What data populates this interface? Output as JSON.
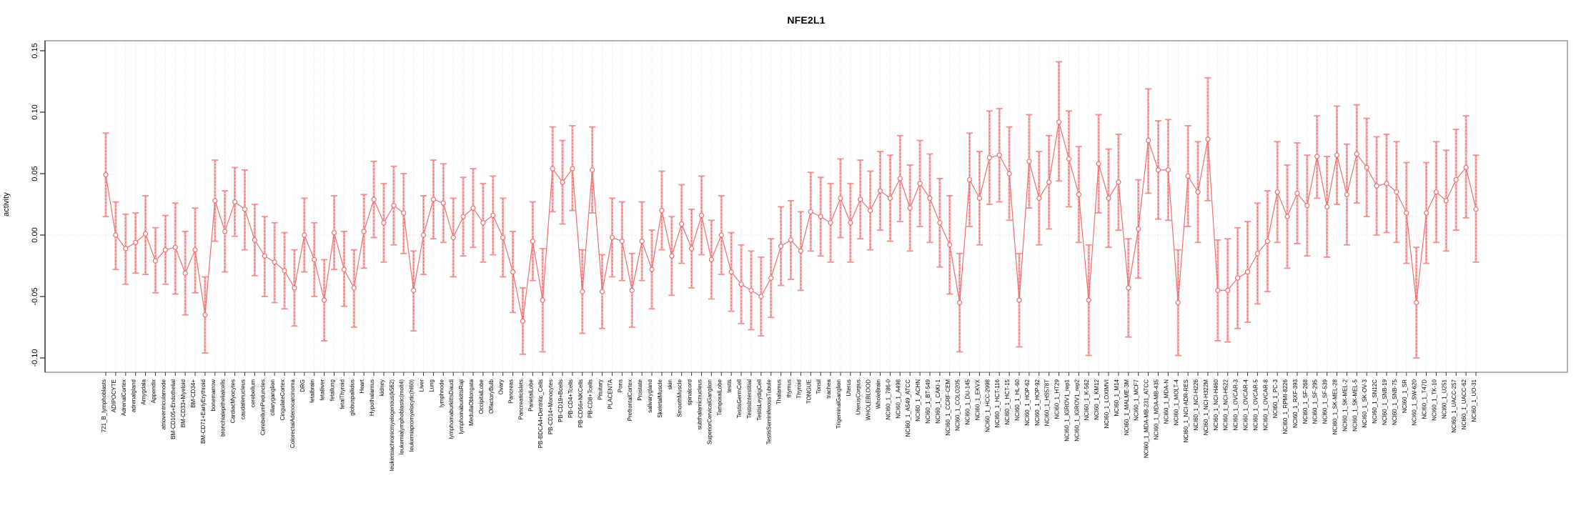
{
  "page": {
    "title": "NFE2L1"
  },
  "chart_data": {
    "type": "line",
    "title": "NFE2L1",
    "xlabel": "",
    "ylabel": "activity",
    "ylim": [
      -0.112,
      0.158
    ],
    "yticks": [
      "-0.10",
      "-0.05",
      "0.00",
      "0.05",
      "0.10",
      "0.15"
    ],
    "ytick_values": [
      -0.1,
      -0.05,
      0.0,
      0.05,
      0.1,
      0.15
    ],
    "grid": "vertical dotted gridline per category; dotted horizontal line at 0",
    "legend_position": "none",
    "point_style": "open circle with error bars",
    "colors": {
      "series": "#ee6f6f",
      "error_band": "#f6b6b6",
      "error_cap": "#f09090",
      "error_dash": "#e86060",
      "gridline": "#dcdcdc",
      "zero_line": "#dedede",
      "plot_border": "#909090",
      "axis": "#444444",
      "text": "#000000"
    },
    "categories": [
      "721_B_lymphoblasts",
      "ADIPOCYTE",
      "AdrenalCortex",
      "adrenalgland",
      "Amygdala",
      "Appendix",
      "atrioventricularnode",
      "BM-CD105+Endothelial",
      "BM-CD33+Myeloid",
      "BM-CD34+",
      "BM-CD71+EarlyErythroid",
      "bonemarrow",
      "bronchialepithelialcells",
      "CardiacMyocytes",
      "caudatenucleus",
      "cerebellum",
      "CerebellumPeduncles",
      "ciliaryganglion",
      "CingulateCortex",
      "ColorectalAdenocarcinoma",
      "DRG",
      "fetalbrain",
      "fetalliver",
      "fetallung",
      "fetalThyroid",
      "globuspallidus",
      "Heart",
      "Hypothalamus",
      "kidney",
      "leukemiachronicmyelogenous(k562)",
      "leukemialymphoblastic(molt4)",
      "leukemiapromyelocytic(hl60)",
      "Liver",
      "Lung",
      "lymphnode",
      "lymphomaburkittsDaudi",
      "lymphomaburkittsRaji",
      "MedullaOblongata",
      "OccipitalLobe",
      "OlfactoryBulb",
      "Ovary",
      "Pancreas",
      "PancreaticIslets",
      "ParietalLobe",
      "PB-BDCA4+Dentritic_Cells",
      "PB-CD14+Monocytes",
      "PB-CD19+Bcells",
      "PB-CD4+Tcells",
      "PB-CD56+NKCells",
      "PB-CD8+Tcells",
      "Pituitary",
      "PLACENTA",
      "Pons",
      "PrefrontalCortex",
      "Prostate",
      "salivarygland",
      "SkeletalMuscle",
      "skin",
      "SmoothMuscle",
      "spinalcord",
      "subthalamicnucleus",
      "SuperiorCervicalGanglion",
      "TemporalLobe",
      "testis",
      "TestisGermCell",
      "TestisInterstitial",
      "TestisLeydigCell",
      "TestisSeminiferousTubule",
      "Thalamus",
      "thymus",
      "Thyroid",
      "TONGUE",
      "Tonsil",
      "trachea",
      "TrigeminalGanglion",
      "Uterus",
      "UterusCorpus",
      "WHOLEBLOOD",
      "WholeBrain",
      "NCI60_1_786-0",
      "NCI60_1_A498",
      "NCI60_1_A549_ATCC",
      "NCI60_1_ACHN",
      "NCI60_1_BT-549",
      "NCI60_1_CAKI-1",
      "NCI60_1_CCRF-CEM",
      "NCI60_1_COLO205",
      "NCI60_1_DU-145",
      "NCI60_1_EKVX",
      "NCI60_1_HCC-2998",
      "NCI60_1_HCT-116",
      "NCI60_1_HCT-15",
      "NCI60_1_HL-60",
      "NCI60_1_HOP-62",
      "NCI60_1_HOP-92",
      "NCI60_1_HS578T",
      "NCI60_1_HT29",
      "NCI60_1_IGROV1_rep1",
      "NCI60_1_IGROV1_rep2",
      "NCI60_1_K-562",
      "NCI60_1_KM12",
      "NCI60_1_LOXIMVI",
      "NCI60_1_M14",
      "NCI60_1_MALME-3M",
      "NCI60_1_MCF7",
      "NCI60_1_MDA-MB-231_ATCC",
      "NCI60_1_MDA-MB-435",
      "NCI60_1_MDA-N",
      "NCI60_1_MOLT-4",
      "NCI60_1_NCI-ADR-RES",
      "NCI60_1_NCI-H226",
      "NCI60_1_NCI-H322M",
      "NCI60_1_NCI-H460",
      "NCI60_1_NCI-H522",
      "NCI60_1_OVCAR-3",
      "NCI60_1_OVCAR-4",
      "NCI60_1_OVCAR-5",
      "NCI60_1_OVCAR-8",
      "NCI60_1_PC-3",
      "NCI60_1_RPMI-8226",
      "NCI60_1_RXF-393",
      "NCI60_1_SF-268",
      "NCI60_1_SF-295",
      "NCI60_1_SF-539",
      "NCI60_1_SK-MEL-28",
      "NCI60_1_SK-MEL-2",
      "NCI60_1_SK-MEL-5",
      "NCI60_1_SK-OV-3",
      "NCI60_1_SN12C",
      "NCI60_1_SNB-19",
      "NCI60_1_SNB-75",
      "NCI60_1_SR",
      "NCI60_1_SW-620",
      "NCI60_1_T47D",
      "NCI60_1_TK-10",
      "NCI60_1_U251",
      "NCI60_1_UACC-257",
      "NCI60_1_UACC-62",
      "NCI60_1_UO-31"
    ],
    "values": [
      0.049,
      0.0,
      -0.011,
      -0.006,
      0.001,
      -0.021,
      -0.012,
      -0.01,
      -0.031,
      -0.012,
      -0.065,
      0.028,
      0.003,
      0.027,
      0.021,
      -0.004,
      -0.017,
      -0.022,
      -0.029,
      -0.043,
      0.0,
      -0.02,
      -0.053,
      0.002,
      -0.028,
      -0.043,
      0.003,
      0.029,
      0.01,
      0.024,
      0.018,
      -0.045,
      0.0,
      0.029,
      0.026,
      -0.002,
      0.015,
      0.022,
      0.01,
      0.016,
      -0.002,
      -0.03,
      -0.07,
      -0.005,
      -0.053,
      0.054,
      0.043,
      0.054,
      -0.046,
      0.053,
      -0.046,
      -0.002,
      -0.005,
      -0.045,
      -0.005,
      -0.028,
      0.02,
      -0.017,
      0.009,
      -0.011,
      0.016,
      -0.02,
      0.0,
      -0.03,
      -0.04,
      -0.045,
      -0.05,
      -0.035,
      -0.009,
      -0.004,
      -0.013,
      0.019,
      0.015,
      0.01,
      0.03,
      0.01,
      0.029,
      0.02,
      0.036,
      0.03,
      0.046,
      0.022,
      0.042,
      0.03,
      0.01,
      -0.008,
      -0.055,
      0.045,
      0.03,
      0.063,
      0.065,
      0.05,
      -0.053,
      0.06,
      0.03,
      0.043,
      0.092,
      0.062,
      0.033,
      -0.053,
      0.058,
      0.03,
      0.043,
      -0.043,
      0.005,
      0.077,
      0.053,
      0.053,
      -0.055,
      0.048,
      0.035,
      0.078,
      -0.045,
      -0.045,
      -0.035,
      -0.03,
      -0.015,
      -0.005,
      0.035,
      0.015,
      0.034,
      0.024,
      0.064,
      0.023,
      0.065,
      0.033,
      0.066,
      0.055,
      0.04,
      0.042,
      0.035,
      0.018,
      -0.055,
      0.018,
      0.035,
      0.028,
      0.045,
      0.055,
      0.021
    ],
    "error_low": [
      0.015,
      -0.028,
      -0.04,
      -0.031,
      -0.032,
      -0.047,
      -0.04,
      -0.048,
      -0.065,
      -0.047,
      -0.096,
      -0.005,
      -0.03,
      -0.001,
      -0.012,
      -0.033,
      -0.05,
      -0.055,
      -0.06,
      -0.074,
      -0.03,
      -0.05,
      -0.086,
      -0.028,
      -0.058,
      -0.075,
      -0.027,
      -0.002,
      -0.022,
      -0.008,
      -0.015,
      -0.078,
      -0.032,
      -0.003,
      -0.006,
      -0.034,
      -0.017,
      -0.01,
      -0.022,
      -0.016,
      -0.034,
      -0.063,
      -0.097,
      -0.037,
      -0.095,
      0.019,
      0.009,
      0.02,
      -0.08,
      0.018,
      -0.076,
      -0.034,
      -0.037,
      -0.075,
      -0.037,
      -0.06,
      -0.012,
      -0.049,
      -0.023,
      -0.043,
      -0.016,
      -0.052,
      -0.032,
      -0.062,
      -0.072,
      -0.077,
      -0.082,
      -0.067,
      -0.041,
      -0.036,
      -0.045,
      -0.013,
      -0.017,
      -0.022,
      -0.002,
      -0.022,
      -0.003,
      -0.012,
      0.004,
      -0.005,
      0.011,
      -0.013,
      0.007,
      -0.006,
      -0.026,
      -0.048,
      -0.095,
      0.007,
      -0.008,
      0.025,
      0.027,
      0.012,
      -0.091,
      0.022,
      -0.008,
      0.005,
      0.044,
      0.023,
      -0.006,
      -0.098,
      0.018,
      -0.01,
      0.004,
      -0.083,
      -0.035,
      0.034,
      0.013,
      0.012,
      -0.098,
      0.007,
      -0.006,
      0.028,
      -0.086,
      -0.087,
      -0.076,
      -0.071,
      -0.056,
      -0.046,
      -0.006,
      -0.027,
      -0.007,
      -0.017,
      0.03,
      -0.018,
      0.025,
      -0.008,
      0.026,
      0.015,
      0.0,
      0.002,
      -0.006,
      -0.023,
      -0.1,
      -0.023,
      -0.006,
      -0.013,
      0.004,
      0.014,
      -0.022
    ],
    "error_high": [
      0.083,
      0.027,
      0.017,
      0.018,
      0.032,
      0.006,
      0.016,
      0.026,
      0.003,
      0.022,
      -0.034,
      0.061,
      0.036,
      0.055,
      0.053,
      0.025,
      0.015,
      0.01,
      0.002,
      -0.012,
      0.03,
      0.01,
      -0.02,
      0.032,
      0.003,
      -0.012,
      0.033,
      0.06,
      0.042,
      0.056,
      0.05,
      -0.013,
      0.032,
      0.061,
      0.058,
      0.03,
      0.047,
      0.054,
      0.042,
      0.048,
      0.03,
      0.003,
      -0.043,
      0.027,
      -0.011,
      0.088,
      0.077,
      0.089,
      -0.012,
      0.088,
      -0.016,
      0.03,
      0.027,
      -0.015,
      0.027,
      0.004,
      0.052,
      0.015,
      0.041,
      0.021,
      0.048,
      0.012,
      0.032,
      0.002,
      -0.008,
      -0.013,
      -0.018,
      -0.003,
      0.023,
      0.028,
      0.019,
      0.051,
      0.047,
      0.042,
      0.062,
      0.042,
      0.061,
      0.052,
      0.068,
      0.065,
      0.081,
      0.057,
      0.077,
      0.066,
      0.046,
      0.032,
      -0.015,
      0.083,
      0.068,
      0.101,
      0.103,
      0.088,
      -0.015,
      0.098,
      0.068,
      0.081,
      0.141,
      0.101,
      0.072,
      -0.008,
      0.098,
      0.07,
      0.082,
      -0.003,
      0.045,
      0.119,
      0.093,
      0.094,
      -0.012,
      0.089,
      0.076,
      0.128,
      -0.004,
      -0.003,
      0.006,
      0.011,
      0.026,
      0.036,
      0.076,
      0.057,
      0.075,
      0.065,
      0.097,
      0.064,
      0.105,
      0.074,
      0.106,
      0.095,
      0.08,
      0.082,
      0.076,
      0.059,
      -0.01,
      0.059,
      0.076,
      0.069,
      0.086,
      0.097,
      0.065
    ]
  }
}
